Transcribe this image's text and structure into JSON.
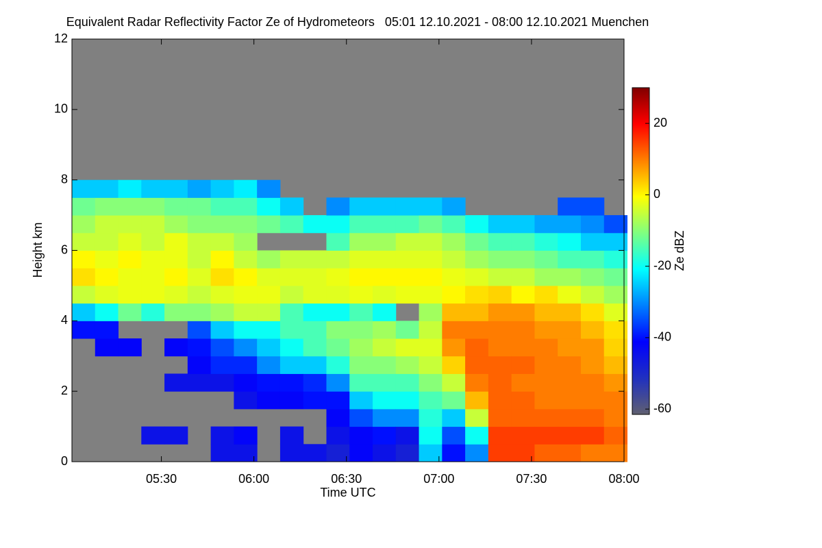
{
  "chart_data": {
    "type": "heatmap",
    "title": "Equivalent Radar Reflectivity Factor Ze of Hydrometeors   05:01 12.10.2021 - 08:00 12.10.2021 Muenchen",
    "x_label": "Time UTC",
    "y_label": "Height km",
    "colorbar_label": "Ze dBZ",
    "xlim": [
      301,
      480
    ],
    "xticks": [
      {
        "value": 330,
        "label": "05:30"
      },
      {
        "value": 360,
        "label": "06:00"
      },
      {
        "value": 390,
        "label": "06:30"
      },
      {
        "value": 420,
        "label": "07:00"
      },
      {
        "value": 450,
        "label": "07:30"
      },
      {
        "value": 480,
        "label": "08:00"
      }
    ],
    "ylim": [
      0,
      12
    ],
    "yticks": [
      0,
      2,
      4,
      6,
      8,
      10,
      12
    ],
    "zlim": [
      -61.5,
      30
    ],
    "zticks": [
      -60,
      -40,
      -20,
      0,
      20
    ],
    "colormap": [
      "#606070",
      "#2030c0",
      "#0000ff",
      "#0080ff",
      "#00ffff",
      "#80ff80",
      "#ffff00",
      "#ff8000",
      "#ff0000",
      "#800000"
    ],
    "nodata_color": "#808080",
    "x": [
      304.75,
      312.25,
      319.75,
      327.25,
      334.75,
      342.25,
      349.75,
      357.25,
      364.75,
      372.25,
      379.75,
      387.25,
      394.75,
      402.25,
      409.75,
      417.25,
      424.75,
      432.25,
      439.75,
      447.25,
      454.75,
      462.25,
      469.75,
      477.25
    ],
    "y": [
      0.25,
      0.75,
      1.25,
      1.75,
      2.25,
      2.75,
      3.25,
      3.75,
      4.25,
      4.75,
      5.25,
      5.75,
      6.25,
      6.75,
      7.25,
      7.75,
      8.25
    ],
    "values": [
      [
        null,
        null,
        null,
        null,
        null,
        null,
        null,
        -40,
        -25,
        -5,
        2,
        0,
        -5,
        -8,
        -12,
        -25,
        null
      ],
      [
        null,
        null,
        null,
        null,
        null,
        null,
        -42,
        -40,
        -20,
        -3,
        0,
        -2,
        -5,
        -5,
        -10,
        -25,
        null
      ],
      [
        null,
        null,
        null,
        null,
        null,
        null,
        -42,
        null,
        -12,
        -2,
        -2,
        0,
        -3,
        -5,
        -10,
        -22,
        null
      ],
      [
        null,
        -45,
        null,
        null,
        null,
        null,
        null,
        null,
        -18,
        -2,
        -2,
        -2,
        -5,
        -5,
        -10,
        -25,
        null
      ],
      [
        null,
        -45,
        null,
        null,
        -45,
        null,
        -42,
        null,
        -10,
        -3,
        0,
        -2,
        -2,
        -8,
        -12,
        -25,
        null
      ],
      [
        null,
        null,
        null,
        null,
        -45,
        -42,
        -40,
        -35,
        -10,
        -5,
        -3,
        -5,
        -5,
        -10,
        -12,
        -28,
        null
      ],
      [
        -45,
        -45,
        null,
        null,
        -45,
        -38,
        -35,
        -25,
        -8,
        -3,
        2,
        0,
        -5,
        -10,
        -15,
        -25,
        null
      ],
      [
        -45,
        -42,
        null,
        -45,
        -42,
        -38,
        -30,
        -20,
        -5,
        -2,
        0,
        -5,
        -8,
        -10,
        -15,
        -22,
        null
      ],
      [
        null,
        null,
        null,
        -42,
        -40,
        -30,
        -25,
        -20,
        -5,
        -2,
        -3,
        -8,
        null,
        -12,
        -20,
        -30,
        null
      ],
      [
        -45,
        -45,
        null,
        -42,
        -40,
        -25,
        -20,
        -15,
        -15,
        -5,
        -3,
        -5,
        null,
        -15,
        -25,
        null,
        null
      ],
      [
        -45,
        null,
        null,
        -40,
        -38,
        -25,
        -15,
        -15,
        -20,
        -3,
        -3,
        -5,
        null,
        -20,
        null,
        null,
        null
      ],
      [
        -48,
        -45,
        -42,
        -40,
        -30,
        -18,
        -12,
        -10,
        -20,
        -3,
        -2,
        -5,
        -15,
        -20,
        -30,
        null,
        null
      ],
      [
        -42,
        -42,
        -35,
        -25,
        -15,
        -10,
        -8,
        -10,
        -15,
        -2,
        0,
        -3,
        -8,
        -15,
        -25,
        null,
        null
      ],
      [
        -45,
        -40,
        -30,
        -20,
        -15,
        -10,
        -5,
        -8,
        -20,
        -3,
        0,
        -3,
        -8,
        -15,
        -25,
        null,
        null
      ],
      [
        -48,
        -45,
        -30,
        -20,
        -15,
        -8,
        -3,
        -12,
        null,
        -2,
        0,
        -3,
        -5,
        -15,
        -25,
        null,
        null
      ],
      [
        -25,
        -20,
        -18,
        -15,
        -10,
        -5,
        -3,
        -5,
        -8,
        -2,
        0,
        -3,
        -5,
        -12,
        -25,
        null,
        null
      ],
      [
        -40,
        -35,
        -25,
        -12,
        -5,
        3,
        8,
        10,
        5,
        0,
        -2,
        -5,
        -8,
        -15,
        -28,
        null,
        null
      ],
      [
        -30,
        -20,
        -5,
        5,
        10,
        12,
        12,
        10,
        5,
        2,
        -3,
        -8,
        -12,
        -20,
        null,
        null,
        null
      ],
      [
        15,
        15,
        12,
        12,
        12,
        12,
        10,
        10,
        8,
        3,
        -5,
        -10,
        -15,
        -25,
        null,
        null,
        null
      ],
      [
        15,
        15,
        12,
        12,
        10,
        12,
        10,
        10,
        8,
        0,
        -5,
        -10,
        -15,
        -25,
        null,
        null,
        null
      ],
      [
        12,
        15,
        12,
        10,
        10,
        10,
        10,
        8,
        5,
        2,
        -8,
        -12,
        -18,
        -28,
        null,
        null,
        null
      ],
      [
        12,
        15,
        12,
        10,
        10,
        10,
        8,
        8,
        5,
        -2,
        -8,
        -15,
        -20,
        -28,
        -35,
        null,
        null
      ],
      [
        10,
        15,
        12,
        10,
        10,
        8,
        8,
        5,
        2,
        -5,
        -10,
        -15,
        -25,
        -30,
        -35,
        null,
        null
      ],
      [
        10,
        12,
        10,
        10,
        8,
        5,
        3,
        2,
        -3,
        -8,
        -12,
        -18,
        -25,
        -35,
        null,
        null,
        null
      ]
    ]
  }
}
